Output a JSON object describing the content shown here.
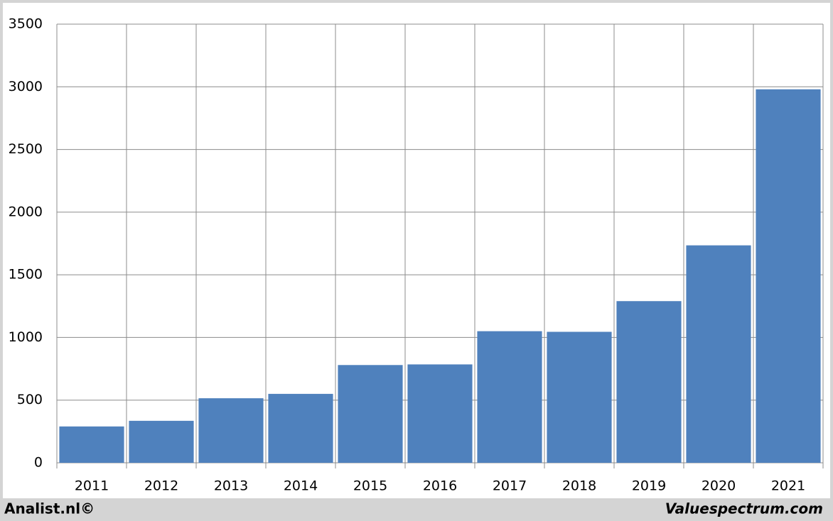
{
  "chart_data": {
    "type": "bar",
    "categories": [
      "2011",
      "2012",
      "2013",
      "2014",
      "2015",
      "2016",
      "2017",
      "2018",
      "2019",
      "2020",
      "2021"
    ],
    "values": [
      290,
      335,
      515,
      550,
      780,
      785,
      1050,
      1045,
      1290,
      1735,
      2980
    ],
    "color": "#4f81bd",
    "ylim": [
      0,
      3500
    ],
    "yticks": [
      0,
      500,
      1000,
      1500,
      2000,
      2500,
      3000,
      3500
    ],
    "grid": true,
    "source_left": "Analist.nl©",
    "source_right": "Valuespectrum.com"
  }
}
